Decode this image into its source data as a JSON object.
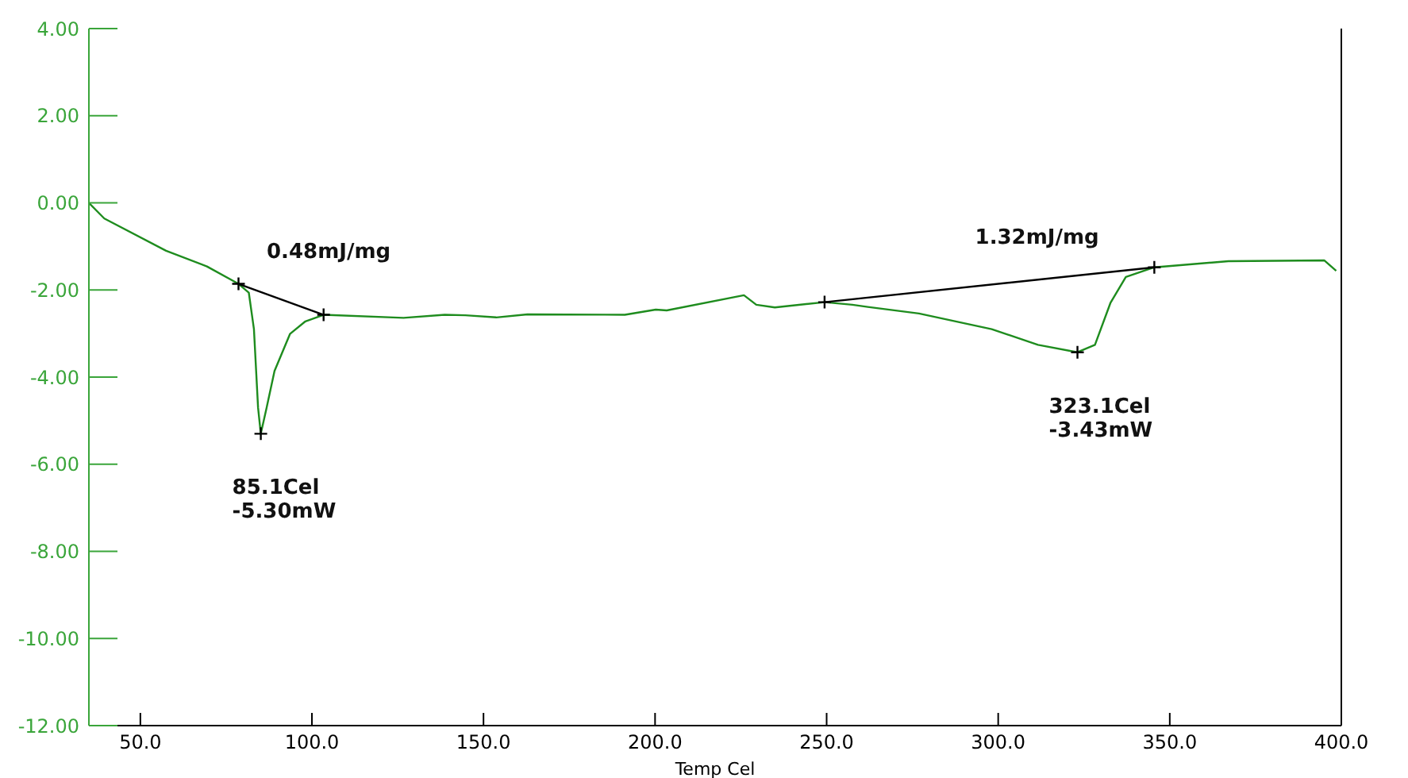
{
  "chart_data": {
    "type": "line",
    "xlabel": "Temp Cel",
    "xlim": [
      35,
      400
    ],
    "ylim": [
      -12,
      4
    ],
    "xticks": [
      {
        "value": 50,
        "label": "50.0"
      },
      {
        "value": 100,
        "label": "100.0"
      },
      {
        "value": 150,
        "label": "150.0"
      },
      {
        "value": 200,
        "label": "200.0"
      },
      {
        "value": 250,
        "label": "250.0"
      },
      {
        "value": 300,
        "label": "300.0"
      },
      {
        "value": 350,
        "label": "350.0"
      },
      {
        "value": 400,
        "label": "400.0"
      }
    ],
    "yticks": [
      {
        "value": 4,
        "label": "4.00"
      },
      {
        "value": 2,
        "label": "2.00"
      },
      {
        "value": 0,
        "label": "0.00"
      },
      {
        "value": -2,
        "label": "-2.00"
      },
      {
        "value": -4,
        "label": "-4.00"
      },
      {
        "value": -6,
        "label": "-6.00"
      },
      {
        "value": -8,
        "label": "-8.00"
      },
      {
        "value": -10,
        "label": "-10.00"
      },
      {
        "value": -12,
        "label": "-12.00"
      }
    ],
    "series": [
      {
        "color": "#1e8c1e",
        "x": [
          35,
          39.5,
          57.5,
          69.4,
          78.6,
          81.6,
          83.1,
          84.3,
          85.1,
          86.8,
          89.1,
          93.6,
          98.1,
          103.4,
          126.7,
          138.7,
          144.7,
          153.7,
          162.8,
          191.2,
          200.2,
          203.4,
          225.9,
          229.5,
          234.9,
          249.4,
          257.5,
          262,
          276.9,
          298.1,
          311.6,
          323.1,
          328.2,
          332.7,
          337.2,
          345.5,
          367.1,
          395,
          398.5
        ],
        "values": [
          0,
          -0.36,
          -1.1,
          -1.46,
          -1.86,
          -2.06,
          -2.9,
          -4.7,
          -5.3,
          -4.7,
          -3.86,
          -3.01,
          -2.72,
          -2.57,
          -2.64,
          -2.57,
          -2.58,
          -2.63,
          -2.56,
          -2.57,
          -2.45,
          -2.47,
          -2.12,
          -2.34,
          -2.4,
          -2.28,
          -2.34,
          -2.39,
          -2.54,
          -2.9,
          -3.26,
          -3.43,
          -3.26,
          -2.3,
          -1.7,
          -1.48,
          -1.34,
          -1.32,
          -1.56
        ]
      },
      {
        "type": "line",
        "color": "#000000",
        "x": [
          78.6,
          103.4
        ],
        "values": [
          -1.86,
          -2.57
        ]
      },
      {
        "type": "line",
        "color": "#000000",
        "x": [
          249.4,
          345.5
        ],
        "values": [
          -2.28,
          -1.48
        ]
      },
      {
        "type": "scatter",
        "color": "#000000",
        "marker": "cross",
        "x": [
          78.6,
          85.1,
          103.4,
          249.4,
          323.1,
          345.5
        ],
        "values": [
          -1.86,
          -5.3,
          -2.57,
          -2.28,
          -3.43,
          -1.48
        ]
      }
    ],
    "annotations": [
      "0.48mJ/mg",
      "1.32mJ/mg",
      {
        "text": "85.1Cel\n-5.30mW",
        "x": 85.1,
        "y": -5.3
      },
      {
        "text": "323.1Cel\n-3.43mW",
        "x": 323.1,
        "y": -3.43
      }
    ]
  }
}
